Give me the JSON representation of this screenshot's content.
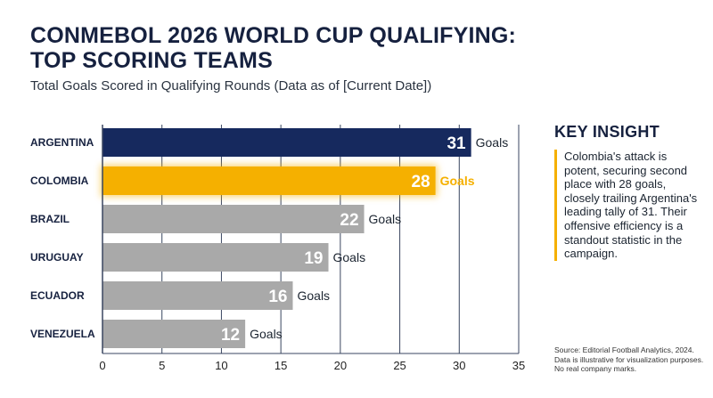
{
  "header": {
    "title": "CONMEBOL 2026 WORLD CUP QUALIFYING: TOP SCORING TEAMS",
    "subtitle": "Total Goals Scored in Qualifying Rounds (Data as of [Current Date])"
  },
  "chart_data": {
    "type": "bar",
    "orientation": "horizontal",
    "categories": [
      "ARGENTINA",
      "COLOMBIA",
      "BRAZIL",
      "URUGUAY",
      "ECUADOR",
      "VENEZUELA"
    ],
    "values": [
      31,
      28,
      22,
      19,
      16,
      12
    ],
    "value_suffix": "Goals",
    "highlight_category": "COLOMBIA",
    "xlim": [
      0,
      35
    ],
    "xticks": [
      0,
      5,
      10,
      15,
      20,
      25,
      30,
      35
    ],
    "grid": true,
    "colors": {
      "leader": "#16295e",
      "highlight": "#f5b000",
      "others": "#a9a9a9",
      "gridline": "#3a4660"
    }
  },
  "insight": {
    "title": "KEY INSIGHT",
    "text": "Colombia's attack is potent, securing second place with 28 goals, closely trailing Argentina's leading tally of 31. Their offensive efficiency is a standout statistic in the campaign."
  },
  "source": {
    "line1": "Source: Editorial Football Analytics, 2024.",
    "line2": "Data is illustrative for visualization purposes.",
    "line3": "No real company marks."
  }
}
